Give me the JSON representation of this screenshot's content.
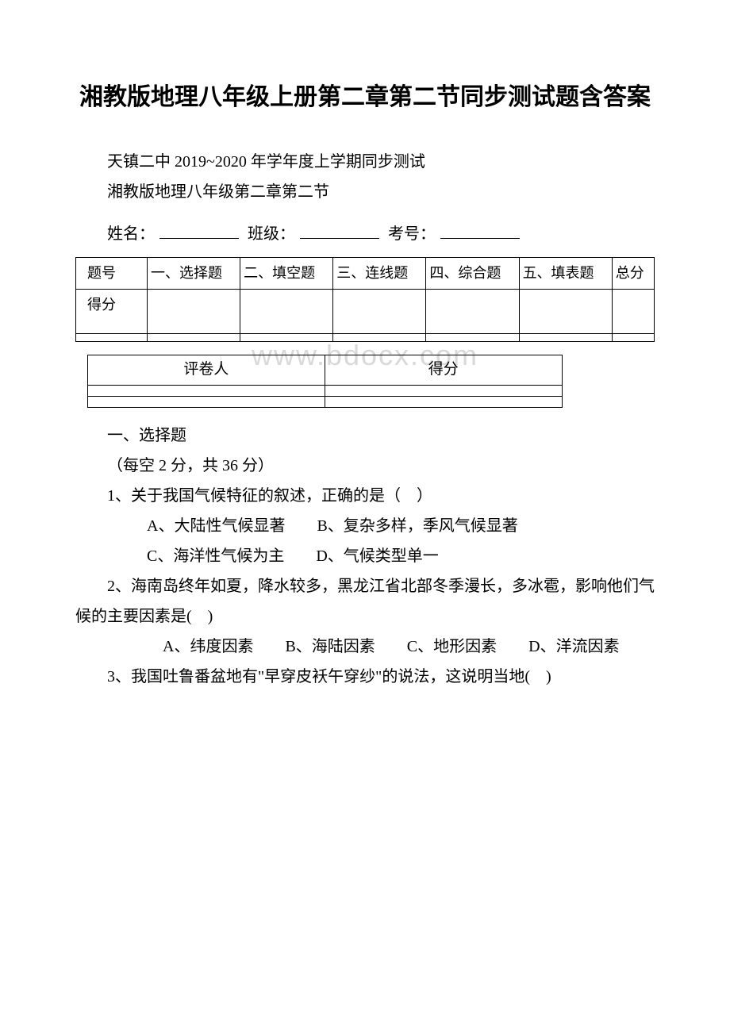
{
  "title": "湘教版地理八年级上册第二章第二节同步测试题含答案",
  "school_line": "天镇二中 2019~2020 年学年度上学期同步测试",
  "subject_line": "湘教版地理八年级第二章第二节",
  "form": {
    "name_label": "姓名：",
    "class_label": "班级：",
    "examno_label": "考号："
  },
  "score_table": {
    "row1": [
      "题号",
      "一、选择题",
      "二、填空题",
      "三、连线题",
      "四、综合题",
      "五、填表题",
      "总分"
    ],
    "row2_label": "得分"
  },
  "watermark": "www.bdocx.com",
  "grader_table": {
    "col1": "评卷人",
    "col2": "得分"
  },
  "section1": {
    "header": "一、选择题",
    "note": "（每空 2 分，共 36 分）"
  },
  "q1": {
    "stem": "1、关于我国气候特征的叙述，正确的是（　）",
    "line1": "　A、大陆性气候显著　　B、复杂多样，季风气候显著",
    "line2": "　C、海洋性气候为主　　D、气候类型单一"
  },
  "q2": {
    "stem": "2、海南岛终年如夏，降水较多，黑龙江省北部冬季漫长，多冰雹，影响他们气候的主要因素是(　)",
    "options": "　　A、纬度因素　　B、海陆因素　　C、地形因素　　D、洋流因素"
  },
  "q3": {
    "stem": "3、我国吐鲁番盆地有\"早穿皮袄午穿纱\"的说法，这说明当地(　)"
  }
}
